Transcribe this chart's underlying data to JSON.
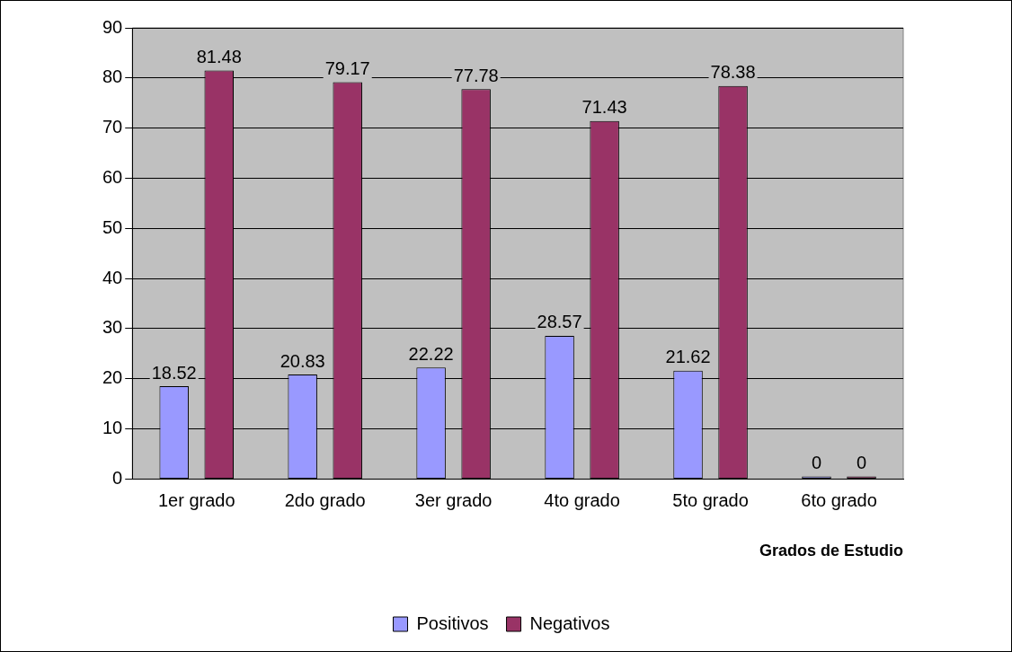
{
  "chart_data": {
    "type": "bar",
    "xlabel": "Grados de Estudio",
    "categories": [
      "1er grado",
      "2do grado",
      "3er grado",
      "4to grado",
      "5to grado",
      "6to grado"
    ],
    "series": [
      {
        "name": "Positivos",
        "color": "#9999ff",
        "values": [
          18.52,
          20.83,
          22.22,
          28.57,
          21.62,
          0
        ]
      },
      {
        "name": "Negativos",
        "color": "#993366",
        "values": [
          81.48,
          79.17,
          77.78,
          71.43,
          78.38,
          0
        ]
      }
    ],
    "ylim": [
      0,
      90
    ],
    "yticks": [
      0,
      10,
      20,
      30,
      40,
      50,
      60,
      70,
      80,
      90
    ],
    "grid": "y",
    "legend": "bottom",
    "data_labels": true
  }
}
